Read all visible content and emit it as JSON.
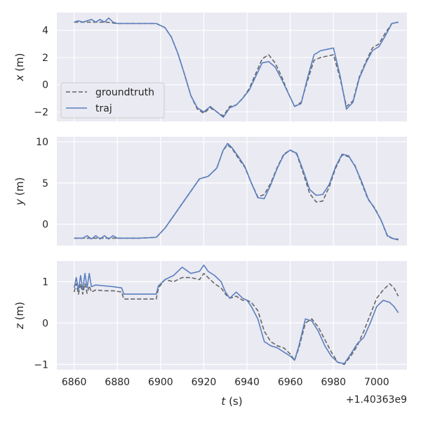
{
  "chart_data": [
    {
      "type": "line",
      "ylabel": "x (m)",
      "ylabel_var": "x",
      "ylabel_unit": " (m)",
      "xlim": [
        6852,
        7014
      ],
      "ylim": [
        -2.7,
        5.3
      ],
      "yticks": [
        4,
        2,
        0,
        -2
      ],
      "ytick_labels": [
        "4",
        "2",
        "0",
        "−2"
      ],
      "grid": true,
      "legend_position": "lower-left",
      "series": [
        {
          "name": "groundtruth",
          "style": "dashed",
          "color": "#666666",
          "x": [
            6860,
            6865,
            6870,
            6875,
            6880,
            6885,
            6890,
            6895,
            6898,
            6902,
            6905,
            6908,
            6911,
            6914,
            6917,
            6920,
            6923,
            6926,
            6929,
            6932,
            6935,
            6938,
            6941,
            6944,
            6947,
            6950,
            6953,
            6956,
            6959,
            6962,
            6965,
            6968,
            6971,
            6974,
            6977,
            6980,
            6983,
            6986,
            6989,
            6992,
            6995,
            6998,
            7001,
            7004,
            7007,
            7010
          ],
          "y": [
            4.6,
            4.6,
            4.6,
            4.6,
            4.5,
            4.5,
            4.5,
            4.5,
            4.5,
            4.2,
            3.5,
            2.3,
            0.8,
            -0.8,
            -1.8,
            -2.1,
            -1.7,
            -2.0,
            -2.3,
            -1.6,
            -1.5,
            -1.0,
            -0.3,
            0.8,
            1.9,
            2.2,
            1.6,
            0.6,
            -0.6,
            -1.6,
            -1.3,
            0.3,
            1.8,
            2.0,
            2.1,
            2.2,
            0.5,
            -1.6,
            -1.2,
            0.6,
            1.7,
            2.7,
            3.0,
            3.8,
            4.5,
            4.6
          ]
        },
        {
          "name": "traj",
          "style": "solid",
          "color": "#5b7fbf",
          "x": [
            6860,
            6862,
            6864,
            6866,
            6868,
            6870,
            6872,
            6874,
            6876,
            6878,
            6880,
            6885,
            6890,
            6895,
            6898,
            6902,
            6905,
            6908,
            6911,
            6914,
            6917,
            6920,
            6923,
            6926,
            6929,
            6932,
            6935,
            6938,
            6941,
            6944,
            6947,
            6950,
            6953,
            6956,
            6959,
            6962,
            6965,
            6968,
            6971,
            6974,
            6977,
            6980,
            6983,
            6986,
            6989,
            6992,
            6995,
            6998,
            7001,
            7004,
            7007,
            7010
          ],
          "y": [
            4.6,
            4.7,
            4.6,
            4.7,
            4.8,
            4.6,
            4.8,
            4.6,
            4.9,
            4.6,
            4.5,
            4.5,
            4.5,
            4.5,
            4.5,
            4.2,
            3.5,
            2.3,
            0.8,
            -0.8,
            -1.7,
            -2.0,
            -1.6,
            -2.0,
            -2.4,
            -1.7,
            -1.5,
            -1.0,
            -0.4,
            0.6,
            1.6,
            1.7,
            1.3,
            0.4,
            -0.6,
            -1.6,
            -1.4,
            0.5,
            2.2,
            2.5,
            2.6,
            2.7,
            0.7,
            -1.8,
            -1.3,
            0.5,
            1.6,
            2.5,
            2.8,
            3.6,
            4.5,
            4.6
          ]
        }
      ]
    },
    {
      "type": "line",
      "ylabel": "y (m)",
      "ylabel_var": "y",
      "ylabel_unit": " (m)",
      "xlim": [
        6852,
        7014
      ],
      "ylim": [
        -2.6,
        10.6
      ],
      "yticks": [
        10,
        5,
        0
      ],
      "ytick_labels": [
        "10",
        "5",
        "0"
      ],
      "grid": true,
      "series": [
        {
          "name": "groundtruth",
          "style": "dashed",
          "color": "#666666",
          "x": [
            6860,
            6870,
            6880,
            6890,
            6898,
            6902,
            6906,
            6910,
            6914,
            6918,
            6922,
            6926,
            6929,
            6931,
            6933,
            6936,
            6939,
            6942,
            6945,
            6948,
            6951,
            6954,
            6957,
            6960,
            6963,
            6966,
            6969,
            6972,
            6975,
            6978,
            6981,
            6984,
            6987,
            6990,
            6993,
            6996,
            6999,
            7002,
            7005,
            7008,
            7010
          ],
          "y": [
            -1.7,
            -1.7,
            -1.7,
            -1.7,
            -1.6,
            -0.5,
            1.0,
            2.5,
            4.0,
            5.5,
            5.8,
            6.8,
            9.0,
            9.6,
            9.2,
            8.0,
            6.9,
            5.0,
            3.3,
            3.6,
            5.0,
            6.9,
            8.5,
            9.0,
            8.5,
            6.2,
            3.7,
            2.7,
            2.8,
            4.5,
            6.8,
            8.4,
            8.2,
            7.1,
            5.0,
            3.0,
            2.0,
            0.5,
            -1.5,
            -1.8,
            -1.9
          ]
        },
        {
          "name": "traj",
          "style": "solid",
          "color": "#5b7fbf",
          "x": [
            6860,
            6864,
            6866,
            6868,
            6870,
            6872,
            6874,
            6876,
            6878,
            6880,
            6885,
            6890,
            6898,
            6902,
            6906,
            6910,
            6914,
            6918,
            6922,
            6926,
            6929,
            6931,
            6933,
            6936,
            6939,
            6942,
            6945,
            6948,
            6951,
            6954,
            6957,
            6960,
            6963,
            6966,
            6969,
            6972,
            6975,
            6978,
            6981,
            6984,
            6987,
            6990,
            6993,
            6996,
            6999,
            7002,
            7005,
            7008,
            7010
          ],
          "y": [
            -1.7,
            -1.7,
            -1.4,
            -1.8,
            -1.4,
            -1.8,
            -1.4,
            -1.8,
            -1.4,
            -1.7,
            -1.7,
            -1.7,
            -1.6,
            -0.5,
            1.0,
            2.5,
            4.0,
            5.5,
            5.8,
            6.8,
            9.0,
            9.8,
            9.3,
            8.2,
            7.0,
            5.0,
            3.2,
            3.1,
            4.8,
            6.8,
            8.4,
            9.0,
            8.6,
            6.5,
            4.2,
            3.5,
            3.6,
            4.8,
            7.0,
            8.5,
            8.3,
            7.0,
            5.2,
            3.1,
            1.9,
            0.5,
            -1.4,
            -1.8,
            -1.8
          ]
        }
      ]
    },
    {
      "type": "line",
      "ylabel": "z (m)",
      "ylabel_var": "z",
      "ylabel_unit": " (m)",
      "xlabel": "t (s)",
      "xlabel_var": "t",
      "xlabel_unit": " (s)",
      "x_offset_label": "+1.40363e9",
      "xlim": [
        6852,
        7014
      ],
      "ylim": [
        -1.13,
        1.5
      ],
      "yticks": [
        1,
        0,
        -1
      ],
      "ytick_labels": [
        "1",
        "0",
        "−1"
      ],
      "xticks": [
        6860,
        6880,
        6900,
        6920,
        6940,
        6960,
        6980,
        7000
      ],
      "xtick_labels": [
        "6860",
        "6880",
        "6900",
        "6920",
        "6940",
        "6960",
        "6980",
        "7000"
      ],
      "grid": true,
      "series": [
        {
          "name": "groundtruth",
          "style": "dashed",
          "color": "#666666",
          "x": [
            6860,
            6861,
            6862,
            6863,
            6864,
            6865,
            6866,
            6867,
            6868,
            6870,
            6874,
            6878,
            6882,
            6883,
            6890,
            6898,
            6899,
            6902,
            6906,
            6910,
            6914,
            6918,
            6920,
            6922,
            6925,
            6928,
            6930,
            6932,
            6935,
            6938,
            6940,
            6942,
            6945,
            6948,
            6951,
            6954,
            6957,
            6960,
            6962,
            6964,
            6967,
            6970,
            6973,
            6976,
            6979,
            6982,
            6985,
            6988,
            6991,
            6994,
            6997,
            7000,
            7003,
            7006,
            7008,
            7010
          ],
          "y": [
            0.75,
            0.95,
            0.7,
            0.95,
            0.7,
            0.95,
            0.72,
            0.9,
            0.75,
            0.8,
            0.78,
            0.78,
            0.75,
            0.58,
            0.58,
            0.58,
            0.85,
            1.05,
            1.0,
            1.1,
            1.1,
            1.05,
            1.2,
            1.1,
            0.95,
            0.85,
            0.7,
            0.6,
            0.65,
            0.55,
            0.55,
            0.5,
            0.3,
            -0.2,
            -0.45,
            -0.55,
            -0.6,
            -0.75,
            -0.9,
            -0.6,
            0.0,
            0.1,
            -0.1,
            -0.4,
            -0.7,
            -0.95,
            -1.0,
            -0.8,
            -0.55,
            -0.2,
            0.2,
            0.6,
            0.8,
            0.95,
            0.85,
            0.65
          ]
        },
        {
          "name": "traj",
          "style": "solid",
          "color": "#5b7fbf",
          "x": [
            6860,
            6861,
            6862,
            6863,
            6864,
            6865,
            6866,
            6867,
            6868,
            6870,
            6874,
            6878,
            6882,
            6883,
            6890,
            6898,
            6899,
            6902,
            6906,
            6910,
            6914,
            6918,
            6920,
            6922,
            6925,
            6928,
            6930,
            6932,
            6935,
            6938,
            6940,
            6942,
            6945,
            6948,
            6951,
            6954,
            6957,
            6960,
            6962,
            6964,
            6967,
            6970,
            6973,
            6976,
            6979,
            6982,
            6985,
            6988,
            6991,
            6994,
            6997,
            7000,
            7003,
            7006,
            7008,
            7010
          ],
          "y": [
            0.85,
            1.1,
            0.8,
            1.15,
            0.8,
            1.2,
            0.85,
            1.2,
            0.88,
            0.92,
            0.9,
            0.88,
            0.85,
            0.7,
            0.7,
            0.7,
            0.9,
            1.05,
            1.15,
            1.35,
            1.2,
            1.25,
            1.4,
            1.25,
            1.15,
            1.0,
            0.75,
            0.6,
            0.75,
            0.6,
            0.55,
            0.4,
            0.1,
            -0.45,
            -0.55,
            -0.6,
            -0.7,
            -0.8,
            -0.9,
            -0.55,
            0.1,
            0.05,
            -0.2,
            -0.55,
            -0.8,
            -0.95,
            -0.98,
            -0.75,
            -0.5,
            -0.35,
            0.0,
            0.4,
            0.55,
            0.5,
            0.4,
            0.25
          ]
        }
      ]
    }
  ]
}
